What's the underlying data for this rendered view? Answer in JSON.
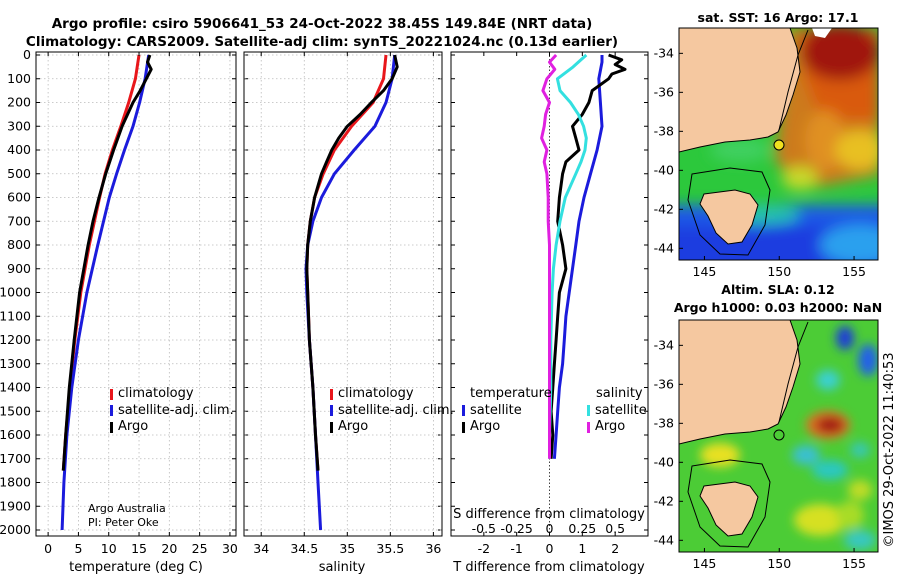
{
  "title": {
    "line1": "Argo profile: csiro 5906641_53 24-Oct-2022 38.45S 149.84E (NRT data)",
    "line2": "Climatology: CARS2009. Satellite-adj clim: synTS_20221024.nc (0.13d earlier)"
  },
  "depth_ticks": [
    "0",
    "100",
    "200",
    "300",
    "400",
    "500",
    "600",
    "700",
    "800",
    "900",
    "1000",
    "1100",
    "1200",
    "1300",
    "1400",
    "1500",
    "1600",
    "1700",
    "1800",
    "1900",
    "2000"
  ],
  "credit": {
    "line1": "Argo Australia",
    "line2": "PI: Peter Oke"
  },
  "timestamp": "©IMOS 29-Oct-2022 11:40:53",
  "colors": {
    "climatology": "#e8161b",
    "satellite": "#1b1bdc",
    "argo": "#000000",
    "sat_salinity": "#33e0e0",
    "argo_salinity": "#e020e0"
  },
  "chart_data": [
    {
      "type": "line",
      "id": "temperature",
      "xlabel": "temperature (deg C)",
      "ylabel": "",
      "xlim": [
        -2,
        31
      ],
      "ylim": [
        2050,
        0
      ],
      "xticks": [
        "0",
        "5",
        "10",
        "15",
        "20",
        "25",
        "30"
      ],
      "grid": true,
      "legend": {
        "position": "lower-right",
        "entries": [
          "climatology",
          "satellite-adj. clim.",
          "Argo"
        ]
      },
      "series": [
        {
          "name": "climatology",
          "color_key": "climatology",
          "depth": [
            0,
            100,
            200,
            300,
            400,
            500,
            600,
            800,
            1000,
            1200,
            1400,
            1600,
            1750
          ],
          "values": [
            15.0,
            14.4,
            13.3,
            12.0,
            10.6,
            9.4,
            8.5,
            6.8,
            5.4,
            4.4,
            3.6,
            2.9,
            2.5
          ]
        },
        {
          "name": "satellite-adj. clim.",
          "color_key": "satellite",
          "depth": [
            0,
            100,
            200,
            300,
            400,
            500,
            600,
            800,
            1000,
            1200,
            1400,
            1600,
            1800,
            2000
          ],
          "values": [
            16.6,
            16.0,
            15.1,
            14.0,
            12.6,
            11.3,
            10.1,
            8.2,
            6.4,
            5.0,
            3.9,
            3.1,
            2.6,
            2.3
          ]
        },
        {
          "name": "Argo",
          "color_key": "argo",
          "depth": [
            0,
            30,
            60,
            100,
            150,
            200,
            300,
            400,
            500,
            600,
            700,
            800,
            1000,
            1200,
            1400,
            1600,
            1750
          ],
          "values": [
            16.8,
            16.4,
            17.0,
            16.2,
            15.2,
            14.0,
            12.2,
            10.8,
            9.5,
            8.4,
            7.4,
            6.6,
            5.2,
            4.3,
            3.5,
            2.9,
            2.5
          ]
        }
      ]
    },
    {
      "type": "line",
      "id": "salinity",
      "xlabel": "salinity",
      "ylabel": "",
      "xlim": [
        33.8,
        36.1
      ],
      "ylim": [
        2050,
        0
      ],
      "xticks": [
        "34",
        "34.5",
        "35",
        "35.5",
        "36"
      ],
      "grid": true,
      "legend": {
        "position": "lower-right",
        "entries": [
          "climatology",
          "satellite-adj. clim.",
          "Argo"
        ]
      },
      "series": [
        {
          "name": "climatology",
          "color_key": "climatology",
          "depth": [
            0,
            100,
            200,
            300,
            400,
            500,
            600,
            700,
            800,
            900,
            1000,
            1200,
            1400,
            1600,
            1750
          ],
          "values": [
            35.45,
            35.42,
            35.3,
            35.05,
            34.85,
            34.72,
            34.62,
            34.57,
            34.54,
            34.53,
            34.54,
            34.56,
            34.6,
            34.63,
            34.66
          ]
        },
        {
          "name": "satellite-adj. clim.",
          "color_key": "satellite",
          "depth": [
            0,
            100,
            200,
            300,
            400,
            500,
            600,
            700,
            800,
            900,
            1000,
            1200,
            1400,
            1600,
            1800,
            2000
          ],
          "values": [
            35.55,
            35.52,
            35.45,
            35.32,
            35.08,
            34.85,
            34.7,
            34.6,
            34.54,
            34.52,
            34.53,
            34.56,
            34.6,
            34.63,
            34.66,
            34.69
          ]
        },
        {
          "name": "Argo",
          "color_key": "argo",
          "depth": [
            0,
            50,
            100,
            150,
            200,
            250,
            300,
            350,
            400,
            450,
            500,
            600,
            700,
            800,
            900,
            1000,
            1200,
            1400,
            1600,
            1750
          ],
          "values": [
            35.55,
            35.58,
            35.52,
            35.42,
            35.28,
            35.15,
            35.0,
            34.9,
            34.82,
            34.76,
            34.7,
            34.62,
            34.57,
            34.54,
            34.53,
            34.54,
            34.56,
            34.6,
            34.63,
            34.66
          ]
        }
      ]
    },
    {
      "type": "line",
      "id": "difference",
      "xlabel": "T difference from climatology",
      "xlabel_top": "S difference from climatology",
      "xlim": [
        -3,
        3
      ],
      "xlim_salinity": [
        -0.75,
        0.75
      ],
      "ylim": [
        2050,
        0
      ],
      "xticks": [
        "-2",
        "-1",
        "0",
        "1",
        "2"
      ],
      "xticks_top": [
        "-0.5",
        "-0.25",
        "0",
        "0.25",
        "0.5"
      ],
      "grid": false,
      "legend_headers": {
        "temperature": "temperature",
        "salinity": "salinity"
      },
      "legend": {
        "position": "lower-center",
        "temperature_entries": [
          "satellite",
          "Argo"
        ],
        "salinity_entries": [
          "satellite",
          "Argo"
        ]
      },
      "series": [
        {
          "name": "temperature satellite",
          "color_key": "satellite",
          "scale": "temperature",
          "depth": [
            0,
            30,
            100,
            200,
            300,
            400,
            500,
            600,
            700,
            800,
            900,
            1000,
            1100,
            1200,
            1300,
            1400,
            1500,
            1600,
            1700
          ],
          "values": [
            1.6,
            1.6,
            1.5,
            1.55,
            1.6,
            1.45,
            1.25,
            1.05,
            0.9,
            0.8,
            0.7,
            0.6,
            0.5,
            0.45,
            0.4,
            0.3,
            0.25,
            0.2,
            0.15
          ]
        },
        {
          "name": "temperature Argo",
          "color_key": "argo",
          "scale": "temperature",
          "depth": [
            0,
            20,
            40,
            60,
            80,
            100,
            150,
            200,
            250,
            300,
            350,
            400,
            450,
            500,
            600,
            700,
            800,
            900,
            1000,
            1100,
            1200,
            1300,
            1400,
            1500,
            1600,
            1700
          ],
          "values": [
            1.8,
            2.2,
            2.0,
            2.3,
            1.9,
            1.8,
            1.3,
            1.2,
            1.0,
            0.7,
            0.8,
            0.9,
            0.5,
            0.4,
            0.3,
            0.25,
            0.4,
            0.5,
            0.3,
            0.25,
            0.2,
            0.15,
            0.1,
            0.05,
            0.1,
            0.05
          ]
        },
        {
          "name": "salinity satellite",
          "color_key": "sat_salinity",
          "scale": "salinity",
          "depth": [
            0,
            50,
            100,
            150,
            200,
            250,
            300,
            350,
            400,
            450,
            500,
            600,
            700,
            800,
            900,
            1000,
            1200,
            1400,
            1600,
            1700
          ],
          "values": [
            0.28,
            0.18,
            0.06,
            0.08,
            0.16,
            0.22,
            0.26,
            0.28,
            0.27,
            0.24,
            0.2,
            0.12,
            0.08,
            0.05,
            0.03,
            0.02,
            0.01,
            0.01,
            0.0,
            0.0
          ]
        },
        {
          "name": "salinity Argo",
          "color_key": "argo_salinity",
          "scale": "salinity",
          "depth": [
            0,
            30,
            60,
            100,
            150,
            200,
            250,
            300,
            350,
            400,
            450,
            500,
            600,
            700,
            800,
            900,
            1000,
            1200,
            1400,
            1600,
            1700
          ],
          "values": [
            0.05,
            0.0,
            0.04,
            -0.02,
            -0.05,
            0.0,
            -0.03,
            -0.04,
            -0.06,
            -0.02,
            -0.04,
            -0.02,
            -0.01,
            -0.01,
            0.0,
            0.0,
            0.0,
            0.0,
            0.0,
            0.0,
            0.0
          ]
        }
      ]
    }
  ],
  "maps": [
    {
      "id": "sst",
      "title": "sat. SST: 16 Argo: 17.1",
      "xticks": [
        "145",
        "150",
        "155"
      ],
      "yticks": [
        "-34",
        "-36",
        "-38",
        "-40",
        "-42",
        "-44"
      ]
    },
    {
      "id": "sla",
      "title_line1": "Altim. SLA: 0.12",
      "title_line2": "Argo h1000: 0.03 h2000: NaN",
      "xticks": [
        "145",
        "150",
        "155"
      ],
      "yticks": [
        "-34",
        "-36",
        "-38",
        "-40",
        "-42",
        "-44"
      ]
    }
  ]
}
